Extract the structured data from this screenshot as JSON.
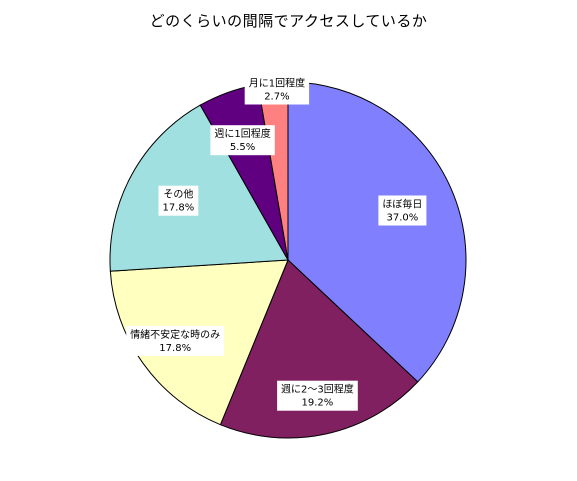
{
  "chart_data": {
    "type": "pie",
    "title": "どのくらいの間隔でアクセスしているか",
    "slices": [
      {
        "label": "ほぼ毎日",
        "value": 37.0,
        "value_label": "37.0%",
        "color": "#8080FF"
      },
      {
        "label": "週に2～3回程度",
        "value": 19.2,
        "value_label": "19.2%",
        "color": "#802060"
      },
      {
        "label": "情緒不安定な時のみ",
        "value": 17.8,
        "value_label": "17.8%",
        "color": "#FFFFC0"
      },
      {
        "label": "その他",
        "value": 17.8,
        "value_label": "17.8%",
        "color": "#A0E0E0"
      },
      {
        "label": "週に1回程度",
        "value": 5.5,
        "value_label": "5.5%",
        "color": "#600080"
      },
      {
        "label": "月に1回程度",
        "value": 2.7,
        "value_label": "2.7%",
        "color": "#FF8080"
      }
    ],
    "start": "12 o'clock",
    "direction": "clockwise",
    "legend": "none"
  }
}
